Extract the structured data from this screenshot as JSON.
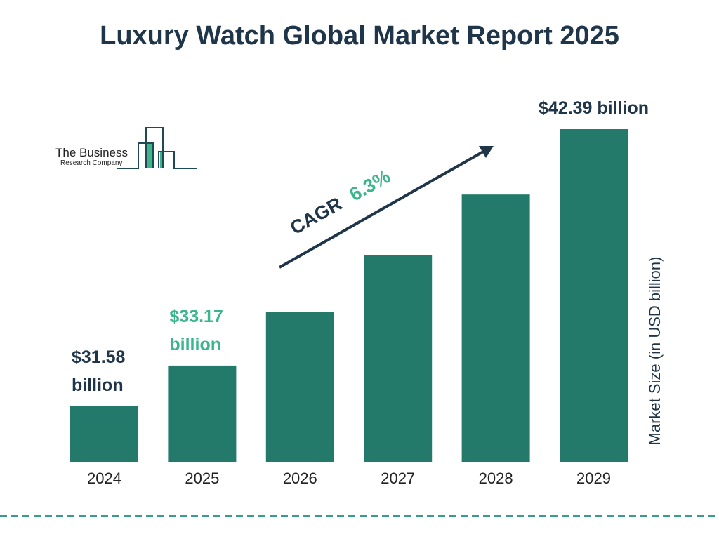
{
  "chart_data": {
    "type": "bar",
    "title": "Luxury Watch Global Market Report 2025",
    "ylabel": "Market Size (in USD billion)",
    "xlabel": "",
    "categories": [
      "2024",
      "2025",
      "2026",
      "2027",
      "2028",
      "2029"
    ],
    "values": [
      31.58,
      33.17,
      35.26,
      37.48,
      39.84,
      42.39
    ],
    "data_labels": [
      {
        "category": "2024",
        "lines": [
          "$31.58",
          "billion"
        ],
        "color": "#1f3549"
      },
      {
        "category": "2025",
        "lines": [
          "$33.17",
          "billion"
        ],
        "color": "#3bb58a"
      },
      {
        "category": "2029",
        "lines": [
          "$42.39 billion"
        ],
        "color": "#1f3549"
      }
    ],
    "annotation": {
      "prefix": "CAGR",
      "value": "6.3%"
    },
    "grid": false,
    "colors": {
      "bar": "#237a6b",
      "title": "#1f3549",
      "accent": "#3bb58a",
      "dash": "#3a9b8f"
    }
  },
  "logo": {
    "line1": "The Business",
    "line2": "Research Company"
  }
}
